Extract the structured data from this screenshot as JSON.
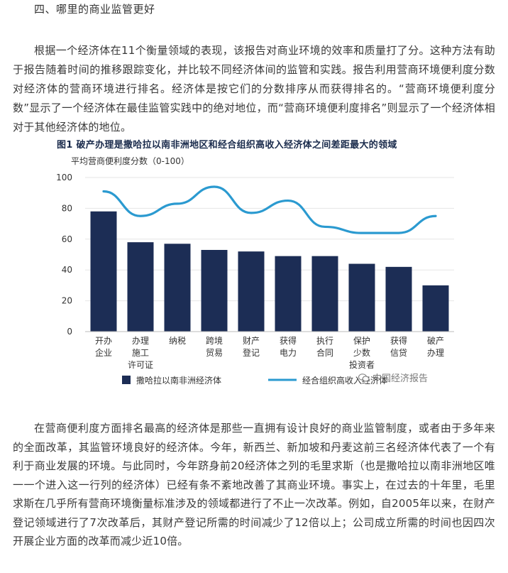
{
  "section_heading": "四、哪里的商业监管更好",
  "paragraph1": "根据一个经济体在11个衡量领域的表现，该报告对商业环境的效率和质量打了分。这种方法有助于报告随着时间的推移跟踪变化，并比较不同经济体间的监管和实践。报告利用营商环境便利度分数对经济体的营商环境进行排名。经济体是按它们的分数排序从而获得排名的。“营商环境便利度分数”显示了一个经济体在最佳监管实践中的绝对地位，而“营商环境便利度排名”则显示了一个经济体相对于其他经济体的地位。",
  "figure_caption": "图1  破产办理是撒哈拉以南非洲地区和经合组织高收入经济体之间差距最大的领域",
  "watermark": "中国经济报告",
  "paragraph2": "在营商便利度方面排名最高的经济体是那些一直拥有设计良好的商业监管制度，或者由于多年来的全面改革，其监管环境良好的经济体。今年，新西兰、新加坡和丹麦这前三名经济体代表了一个有利于商业发展的环境。与此同时，今年跻身前20经济体之列的毛里求斯（也是撒哈拉以南非洲地区唯一一个进入这一行列的经济体）已经有条不紊地改善了其商业环境。事实上，在过去的十年里，毛里求斯在几乎所有营商环境衡量标准涉及的领域都进行了不止一次改革。例如，自2005年以来，在财产登记领域进行了7次改革后，其财产登记所需的时间减少了12倍以上；公司成立所需的时间也因四次开展企业方面的改革而减少近10倍。",
  "colors": {
    "bar": "#1c2d55",
    "line": "#2b9ad0",
    "grid": "#e6e6e6"
  },
  "chart_data": {
    "type": "bar",
    "ylabel": "平均营商便利度分数（0-100）",
    "ylim": [
      0,
      100
    ],
    "yticks": [
      0,
      20,
      40,
      60,
      80,
      100
    ],
    "grid": true,
    "legend_position": "bottom",
    "categories": [
      [
        "开办",
        "企业"
      ],
      [
        "办理",
        "施工",
        "许可证"
      ],
      [
        "纳税"
      ],
      [
        "跨境",
        "贸易"
      ],
      [
        "财产",
        "登记"
      ],
      [
        "获得",
        "电力"
      ],
      [
        "执行",
        "合同"
      ],
      [
        "保护",
        "少数",
        "投资者"
      ],
      [
        "获得",
        "信贷"
      ],
      [
        "破产",
        "办理"
      ]
    ],
    "series": [
      {
        "name": "撒哈拉以南非洲经济体",
        "type": "bar",
        "values": [
          78,
          58,
          57,
          53,
          52,
          49,
          49,
          44,
          42,
          30
        ]
      },
      {
        "name": "经合组织高收入经济体",
        "type": "line",
        "values": [
          91,
          75,
          83,
          94,
          77,
          85,
          68,
          64,
          64,
          75
        ]
      }
    ]
  }
}
